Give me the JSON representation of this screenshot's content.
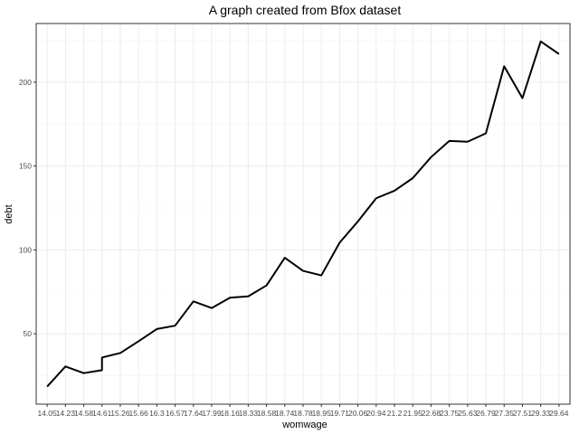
{
  "chart_data": {
    "type": "line",
    "title": "A graph created from Bfox dataset",
    "xlabel": "womwage",
    "ylabel": "debt",
    "x_scale": "discrete",
    "categories": [
      "14.05",
      "14.23",
      "14.58",
      "14.61",
      "15.26",
      "15.66",
      "16.3",
      "16.57",
      "17.64",
      "17.99",
      "18.16",
      "18.33",
      "18.58",
      "18.74",
      "18.78",
      "18.95",
      "19.71",
      "20.06",
      "20.94",
      "21.2",
      "21.95",
      "22.68",
      "23.75",
      "25.63",
      "26.79",
      "27.35",
      "27.51",
      "29.33",
      "29.64"
    ],
    "series": [
      {
        "points": [
          {
            "x": "14.05",
            "y": 18.5
          },
          {
            "x": "14.23",
            "y": 30.5
          },
          {
            "x": "14.58",
            "y": 26.5
          },
          {
            "x": "14.61",
            "y": 28.3
          },
          {
            "x": "14.61",
            "y": 35.8
          },
          {
            "x": "15.26",
            "y": 38.5
          },
          {
            "x": "15.66",
            "y": 45.5
          },
          {
            "x": "16.3",
            "y": 52.8
          },
          {
            "x": "16.57",
            "y": 54.8
          },
          {
            "x": "17.64",
            "y": 69.3
          },
          {
            "x": "17.99",
            "y": 65.3
          },
          {
            "x": "18.16",
            "y": 71.5
          },
          {
            "x": "18.33",
            "y": 72.3
          },
          {
            "x": "18.58",
            "y": 78.8
          },
          {
            "x": "18.74",
            "y": 95.3
          },
          {
            "x": "18.78",
            "y": 87.5
          },
          {
            "x": "18.95",
            "y": 84.8
          },
          {
            "x": "19.71",
            "y": 104.3
          },
          {
            "x": "20.06",
            "y": 117.0
          },
          {
            "x": "20.94",
            "y": 130.8
          },
          {
            "x": "21.2",
            "y": 135.3
          },
          {
            "x": "21.95",
            "y": 142.8
          },
          {
            "x": "22.68",
            "y": 155.3
          },
          {
            "x": "23.75",
            "y": 165.0
          },
          {
            "x": "25.63",
            "y": 164.5
          },
          {
            "x": "26.79",
            "y": 169.5
          },
          {
            "x": "27.35",
            "y": 209.5
          },
          {
            "x": "27.51",
            "y": 190.5
          },
          {
            "x": "29.33",
            "y": 224.3
          },
          {
            "x": "29.64",
            "y": 216.8
          }
        ]
      }
    ],
    "y_ticks": [
      50,
      100,
      150,
      200
    ],
    "ylim": [
      8.0,
      235.0
    ],
    "grid": true,
    "legend": "none",
    "line_color": "#000000"
  }
}
